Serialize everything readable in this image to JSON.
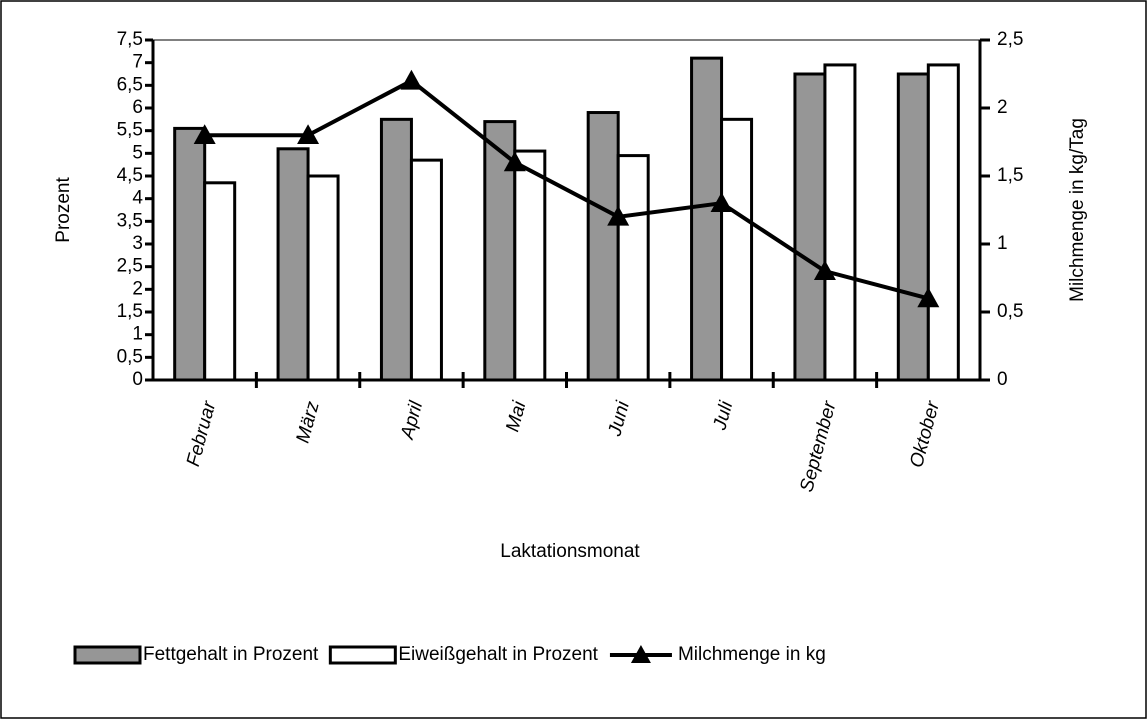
{
  "chart_data": {
    "type": "bar-line",
    "x_label": "Laktationsmonat",
    "y_label": "Prozent",
    "y2_label": "Milchmenge in kg/Tag",
    "categories": [
      "Februar",
      "März",
      "April",
      "Mai",
      "Juni",
      "Juli",
      "September",
      "Oktober"
    ],
    "series": [
      {
        "name": "Fettgehalt in Prozent",
        "type": "bar",
        "color": "#969696",
        "values": [
          5.55,
          5.1,
          5.75,
          5.7,
          5.9,
          7.1,
          6.75,
          6.75
        ]
      },
      {
        "name": "Eiweißgehalt in Prozent",
        "type": "bar",
        "color": "#ffffff",
        "values": [
          4.35,
          4.5,
          4.85,
          5.05,
          4.95,
          5.75,
          6.95,
          6.95
        ]
      },
      {
        "name": "Milchmenge in kg",
        "type": "line",
        "axis": "y2",
        "color": "#000000",
        "values": [
          1.8,
          1.8,
          2.2,
          1.6,
          1.2,
          1.3,
          0.8,
          0.6
        ]
      }
    ],
    "ylim": [
      0,
      7.5
    ],
    "yticks": [
      0,
      {
        "value": 0.5,
        "label": "0,5"
      },
      1,
      {
        "value": 1.5,
        "label": "1,5"
      },
      2,
      {
        "value": 2.5,
        "label": "2,5"
      },
      3,
      {
        "value": 3.5,
        "label": "3,5"
      },
      4,
      {
        "value": 4.5,
        "label": "4,5"
      },
      5,
      {
        "value": 5.5,
        "label": "5,5"
      },
      6,
      {
        "value": 6.5,
        "label": "6,5"
      },
      7,
      {
        "value": 7.5,
        "label": "7,5"
      }
    ],
    "y2lim": [
      0,
      2.5
    ],
    "y2ticks": [
      0,
      {
        "value": 0.5,
        "label": "0,5"
      },
      1,
      {
        "value": 1.5,
        "label": "1,5"
      },
      2,
      {
        "value": 2.5,
        "label": "2,5"
      }
    ],
    "legend": "bottom"
  }
}
